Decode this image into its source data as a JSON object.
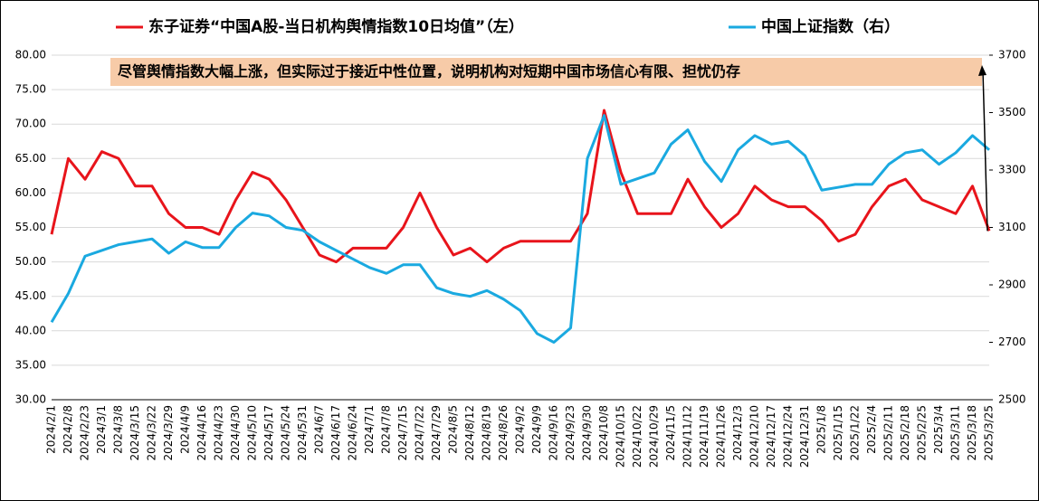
{
  "chart_data": {
    "type": "line",
    "categories": [
      "2024/2/1",
      "2024/2/8",
      "2024/2/23",
      "2024/3/1",
      "2024/3/8",
      "2024/3/15",
      "2024/3/22",
      "2024/3/29",
      "2024/4/9",
      "2024/4/16",
      "2024/4/23",
      "2024/4/30",
      "2024/5/10",
      "2024/5/17",
      "2024/5/24",
      "2024/5/31",
      "2024/6/7",
      "2024/6/17",
      "2024/6/24",
      "2024/7/1",
      "2024/7/8",
      "2024/7/15",
      "2024/7/22",
      "2024/7/29",
      "2024/8/5",
      "2024/8/12",
      "2024/8/19",
      "2024/8/26",
      "2024/9/2",
      "2024/9/9",
      "2024/9/16",
      "2024/9/23",
      "2024/9/30",
      "2024/10/8",
      "2024/10/15",
      "2024/10/22",
      "2024/10/29",
      "2024/11/5",
      "2024/11/12",
      "2024/11/19",
      "2024/11/26",
      "2024/12/3",
      "2024/12/10",
      "2024/12/17",
      "2024/12/24",
      "2024/12/31",
      "2025/1/8",
      "2025/1/15",
      "2025/1/22",
      "2025/2/4",
      "2025/2/11",
      "2025/2/18",
      "2025/2/25",
      "2025/3/4",
      "2025/3/11",
      "2025/3/18",
      "2025/3/25"
    ],
    "series": [
      {
        "name": "东子证券“中国A股-当日机构舆情指数10日均值”（左）",
        "color": "#e8141b",
        "axis": "y",
        "values": [
          54,
          65,
          62,
          66,
          65,
          61,
          61,
          57,
          55,
          55,
          54,
          59,
          63,
          62,
          59,
          55,
          51,
          50,
          52,
          52,
          52,
          55,
          60,
          55,
          51,
          52,
          50,
          52,
          53,
          53,
          53,
          53,
          57,
          72,
          63,
          57,
          57,
          57,
          62,
          58,
          55,
          57,
          61,
          59,
          58,
          58,
          56,
          53,
          54,
          58,
          61,
          62,
          59,
          58,
          57,
          61,
          54.5
        ]
      },
      {
        "name": "中国上证指数（右）",
        "color": "#1aa9e0",
        "axis": "y2",
        "values": [
          2770,
          2870,
          3000,
          3020,
          3040,
          3050,
          3060,
          3010,
          3050,
          3030,
          3030,
          3100,
          3150,
          3140,
          3100,
          3090,
          3050,
          3020,
          2990,
          2960,
          2940,
          2970,
          2970,
          2890,
          2870,
          2860,
          2880,
          2850,
          2810,
          2730,
          2700,
          2750,
          3340,
          3490,
          3250,
          3270,
          3290,
          3390,
          3440,
          3330,
          3260,
          3370,
          3420,
          3390,
          3400,
          3350,
          3230,
          3240,
          3250,
          3250,
          3320,
          3360,
          3370,
          3320,
          3360,
          3420,
          3370
        ]
      }
    ],
    "ylim": [
      30,
      80
    ],
    "yticks": [
      {
        "value": 30,
        "label": "30.00"
      },
      {
        "value": 35,
        "label": "35.00"
      },
      {
        "value": 40,
        "label": "40.00"
      },
      {
        "value": 45,
        "label": "45.00"
      },
      {
        "value": 50,
        "label": "50.00"
      },
      {
        "value": 55,
        "label": "55.00"
      },
      {
        "value": 60,
        "label": "60.00"
      },
      {
        "value": 65,
        "label": "65.00"
      },
      {
        "value": 70,
        "label": "70.00"
      },
      {
        "value": 75,
        "label": "75.00"
      },
      {
        "value": 80,
        "label": "80.00"
      }
    ],
    "y2lim": [
      2500,
      3700
    ],
    "y2ticks": [
      2500,
      2700,
      2900,
      3100,
      3300,
      3500,
      3700
    ],
    "grid": true,
    "annotation": "尽管舆情指数大幅上涨，但实际过于接近中性位置，说明机构对短期中国市场信心有限、担忧仍存"
  }
}
